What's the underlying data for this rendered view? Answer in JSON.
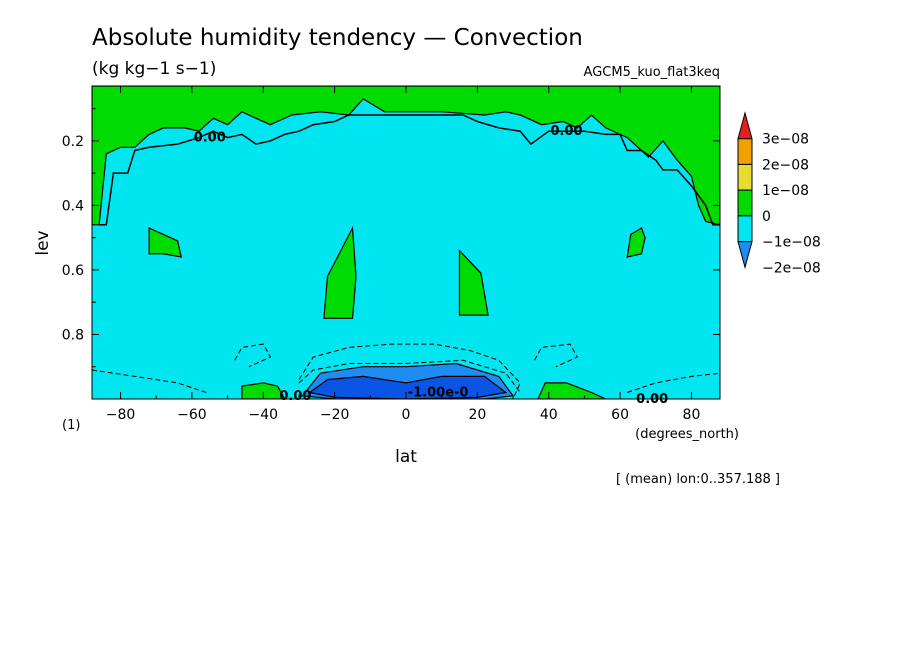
{
  "chart_data": {
    "type": "contour",
    "title": "Absolute humidity tendency — Convection",
    "units": "(kg kg−1 s−1)",
    "dataset": "AGCM5_kuo_flat3keq",
    "xlabel": "lat",
    "xunits": "(degrees_north)",
    "ylabel": "lev",
    "yunits": "(1)",
    "xlim": [
      -88,
      88
    ],
    "ylim": [
      1.0,
      0.03
    ],
    "x_ticks": [
      -80,
      -60,
      -40,
      -20,
      0,
      20,
      40,
      60,
      80
    ],
    "x_tick_labels": [
      "−80",
      "−60",
      "−40",
      "−20",
      "0",
      "20",
      "40",
      "60",
      "80"
    ],
    "y_ticks": [
      0.2,
      0.4,
      0.6,
      0.8
    ],
    "y_tick_labels": [
      "0.2",
      "0.4",
      "0.6",
      "0.8"
    ],
    "footnote": "[ (mean) lon:0..357.188 ]",
    "contour_labels": [
      {
        "text": "0.00",
        "lat": -55,
        "lev": 0.19
      },
      {
        "text": "0.00",
        "lat": 45,
        "lev": 0.17
      },
      {
        "text": "0.00",
        "lat": -31,
        "lev": 0.99
      },
      {
        "text": "-1.00e-0",
        "lat": 9,
        "lev": 0.98
      },
      {
        "text": "0.00",
        "lat": 69,
        "lev": 1.0
      }
    ],
    "colorbar": {
      "levels": [
        -2e-08,
        -1e-08,
        0,
        1e-08,
        2e-08,
        3e-08
      ],
      "labels": [
        "−2e−08",
        "−1e−08",
        "0",
        "1e−08",
        "2e−08",
        "3e−08"
      ],
      "colors": [
        "#1e8cf0",
        "#00e6f0",
        "#00dc00",
        "#e6dc32",
        "#f0a000",
        "#e61e1e"
      ]
    },
    "regions": [
      {
        "name": "upper-positive",
        "range": "0 to 1e-08",
        "color": "#00dc00",
        "points": [
          [
            -88,
            0.03
          ],
          [
            88,
            0.03
          ],
          [
            88,
            0.46
          ],
          [
            84,
            0.45
          ],
          [
            82,
            0.4
          ],
          [
            80,
            0.31
          ],
          [
            76,
            0.26
          ],
          [
            72,
            0.2
          ],
          [
            68,
            0.25
          ],
          [
            62,
            0.19
          ],
          [
            56,
            0.16
          ],
          [
            52,
            0.12
          ],
          [
            48,
            0.16
          ],
          [
            44,
            0.14
          ],
          [
            38,
            0.15
          ],
          [
            32,
            0.12
          ],
          [
            28,
            0.11
          ],
          [
            22,
            0.12
          ],
          [
            10,
            0.11
          ],
          [
            -6,
            0.11
          ],
          [
            -12,
            0.07
          ],
          [
            -16,
            0.12
          ],
          [
            -24,
            0.11
          ],
          [
            -32,
            0.12
          ],
          [
            -38,
            0.15
          ],
          [
            -42,
            0.13
          ],
          [
            -46,
            0.11
          ],
          [
            -50,
            0.15
          ],
          [
            -54,
            0.13
          ],
          [
            -58,
            0.17
          ],
          [
            -62,
            0.16
          ],
          [
            -68,
            0.16
          ],
          [
            -72,
            0.18
          ],
          [
            -76,
            0.22
          ],
          [
            -80,
            0.22
          ],
          [
            -84,
            0.24
          ],
          [
            -86,
            0.46
          ],
          [
            -88,
            0.46
          ]
        ]
      },
      {
        "name": "midlevel-left-small",
        "range": "0 to 1e-08",
        "color": "#00dc00",
        "points": [
          [
            -72,
            0.47
          ],
          [
            -68,
            0.49
          ],
          [
            -64,
            0.51
          ],
          [
            -63,
            0.56
          ],
          [
            -68,
            0.55
          ],
          [
            -72,
            0.55
          ]
        ]
      },
      {
        "name": "midlevel-right-small",
        "range": "0 to 1e-08",
        "color": "#00dc00",
        "points": [
          [
            66,
            0.47
          ],
          [
            63,
            0.49
          ],
          [
            62,
            0.56
          ],
          [
            66,
            0.55
          ],
          [
            67,
            0.5
          ]
        ]
      },
      {
        "name": "midlevel-left-lobe",
        "range": "0 to 1e-08",
        "color": "#00dc00",
        "points": [
          [
            -15,
            0.47
          ],
          [
            -22,
            0.62
          ],
          [
            -23,
            0.75
          ],
          [
            -15,
            0.75
          ],
          [
            -14,
            0.62
          ]
        ]
      },
      {
        "name": "midlevel-right-lobe",
        "range": "0 to 1e-08",
        "color": "#00dc00",
        "points": [
          [
            15,
            0.54
          ],
          [
            15,
            0.74
          ],
          [
            23,
            0.74
          ],
          [
            21,
            0.61
          ]
        ]
      },
      {
        "name": "near-surface-left",
        "range": "0 to 1e-08",
        "color": "#00dc00",
        "points": [
          [
            -46,
            1.0
          ],
          [
            -46,
            0.96
          ],
          [
            -40,
            0.95
          ],
          [
            -36,
            0.96
          ],
          [
            -34,
            1.0
          ]
        ]
      },
      {
        "name": "near-surface-right",
        "range": "0 to 1e-08",
        "color": "#00dc00",
        "points": [
          [
            37,
            1.0
          ],
          [
            39,
            0.95
          ],
          [
            45,
            0.95
          ],
          [
            52,
            0.98
          ],
          [
            56,
            1.0
          ]
        ]
      },
      {
        "name": "tropical-negative-1",
        "range": "-2e-08 to -1e-08",
        "color": "#1e8cf0",
        "points": [
          [
            -29,
            0.99
          ],
          [
            -24,
            0.92
          ],
          [
            -12,
            0.9
          ],
          [
            0,
            0.9
          ],
          [
            14,
            0.89
          ],
          [
            26,
            0.93
          ],
          [
            30,
            0.99
          ],
          [
            22,
            1.0
          ],
          [
            0,
            1.0
          ],
          [
            -20,
            1.0
          ]
        ]
      },
      {
        "name": "tropical-negative-2",
        "range": "below -2e-08",
        "color": "#0a55e6",
        "points": [
          [
            -27,
            0.98
          ],
          [
            -22,
            0.94
          ],
          [
            -12,
            0.93
          ],
          [
            0,
            0.95
          ],
          [
            10,
            0.93
          ],
          [
            22,
            0.93
          ],
          [
            28,
            0.98
          ],
          [
            20,
            0.995
          ],
          [
            0,
            1.0
          ],
          [
            -20,
            0.995
          ]
        ]
      }
    ],
    "zero_contour": [
      [
        -86,
        0.46
      ],
      [
        -84,
        0.46
      ],
      [
        -82,
        0.3
      ],
      [
        -78,
        0.3
      ],
      [
        -76,
        0.23
      ],
      [
        -72,
        0.22
      ],
      [
        -64,
        0.21
      ],
      [
        -58,
        0.19
      ],
      [
        -54,
        0.17
      ],
      [
        -50,
        0.19
      ],
      [
        -46,
        0.18
      ],
      [
        -42,
        0.21
      ],
      [
        -38,
        0.2
      ],
      [
        -34,
        0.18
      ],
      [
        -30,
        0.17
      ],
      [
        -26,
        0.15
      ],
      [
        -20,
        0.14
      ],
      [
        -16,
        0.12
      ],
      [
        -8,
        0.12
      ],
      [
        4,
        0.12
      ],
      [
        16,
        0.12
      ],
      [
        20,
        0.14
      ],
      [
        26,
        0.16
      ],
      [
        32,
        0.17
      ],
      [
        35,
        0.21
      ],
      [
        40,
        0.17
      ],
      [
        50,
        0.17
      ],
      [
        56,
        0.18
      ],
      [
        60,
        0.18
      ],
      [
        62,
        0.23
      ],
      [
        66,
        0.23
      ],
      [
        70,
        0.26
      ],
      [
        72,
        0.29
      ],
      [
        76,
        0.29
      ],
      [
        80,
        0.34
      ],
      [
        84,
        0.4
      ],
      [
        86,
        0.46
      ],
      [
        88,
        0.46
      ]
    ]
  }
}
